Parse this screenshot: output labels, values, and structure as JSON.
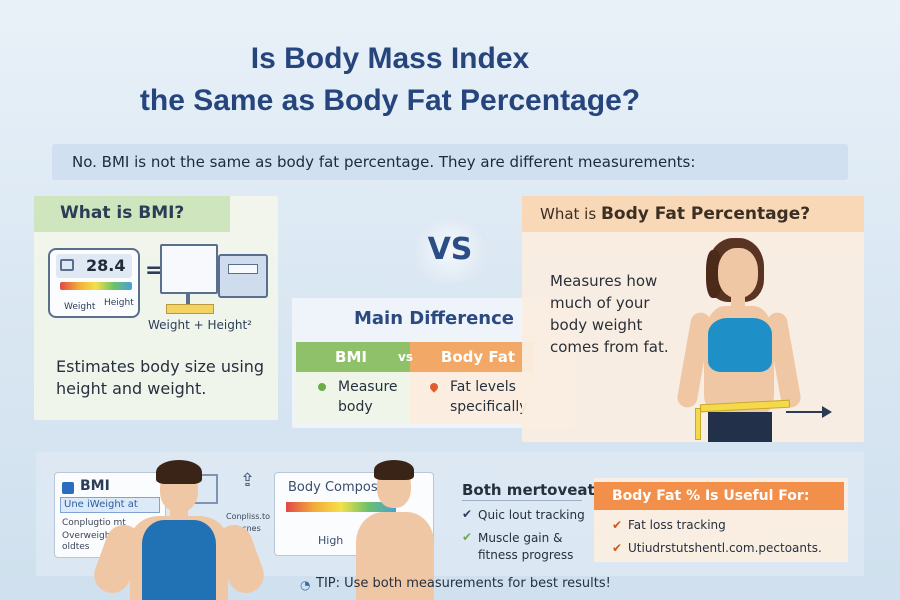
{
  "title": {
    "line1": "Is Body Mass Index",
    "line2": "the Same as Body Fat Percentage?"
  },
  "intro": "No. BMI is not the same as body fat percentage. They are different measurements:",
  "bmi_section": {
    "heading": "What is BMI?",
    "device_value": "28.4",
    "device_weight": "Weight",
    "device_height": "Height",
    "equals": "=",
    "formula": "Weight + Height²",
    "description": "Estimates body size using height and weight."
  },
  "vs": "VS",
  "difference": {
    "heading": "Main Difference",
    "bmi_label": "BMI",
    "vs_label": "vs",
    "fat_label": "Body Fat",
    "bmi_point": "Measure body",
    "fat_point": "Fat levels specifically"
  },
  "fat_section": {
    "heading_prefix": "What is ",
    "heading_bold": "Body Fat Percentage?",
    "description": "Measures how much of your body weight comes from fat."
  },
  "bottom": {
    "bmi_card_title": "BMI",
    "bmi_card_sub": "Une iWeight at",
    "bmi_card_line1": "Conplugtio mt",
    "bmi_card_line2": "Overweight",
    "bmi_card_line3": "oldtes",
    "small_row1": "Conpliss.to",
    "small_row2": "oslecnes",
    "comp_title": "Body Compos",
    "comp_level": "High",
    "both_title": "Both mertoveat",
    "both_items": [
      "Quic lout tracking",
      "Muscle gain & fitness progress"
    ],
    "useful_title": "Body Fat % Is Useful For:",
    "useful_items": [
      "Fat loss tracking",
      "Utiudrstutshentl.com.pectoants."
    ]
  },
  "tip": "TIP: Use both measurements for best results!",
  "colors": {
    "title": "#26457d",
    "bmi_green": "#8fc06a",
    "fat_orange": "#f2a866",
    "top_blue": "#1e8fc7"
  }
}
